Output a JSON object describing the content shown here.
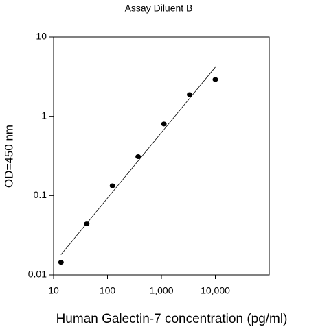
{
  "chart_data": {
    "type": "scatter",
    "title": "Assay Diluent B",
    "x_label": "Human Galectin-7 concentration (pg/ml)",
    "y_label": "OD=450 nm",
    "x": [
      13.72,
      41.15,
      123.5,
      370.4,
      1111,
      3333,
      10000
    ],
    "values": [
      0.0144,
      0.044,
      0.133,
      0.31,
      0.8,
      1.88,
      2.91
    ],
    "color": "#000000",
    "fit_line": {
      "x": [
        13.72,
        10000
      ],
      "values": [
        0.018,
        4.17
      ],
      "color": "#000000"
    },
    "x_scale": "log",
    "y_scale": "log",
    "xlim": [
      10,
      100000
    ],
    "xticks": [
      10,
      100,
      {
        "value": 1000,
        "label": "1,000"
      },
      {
        "value": 10000,
        "label": "10,000"
      }
    ],
    "ylim": [
      0.01,
      10
    ],
    "yticks": [
      0.01,
      0.1,
      1,
      10
    ]
  }
}
